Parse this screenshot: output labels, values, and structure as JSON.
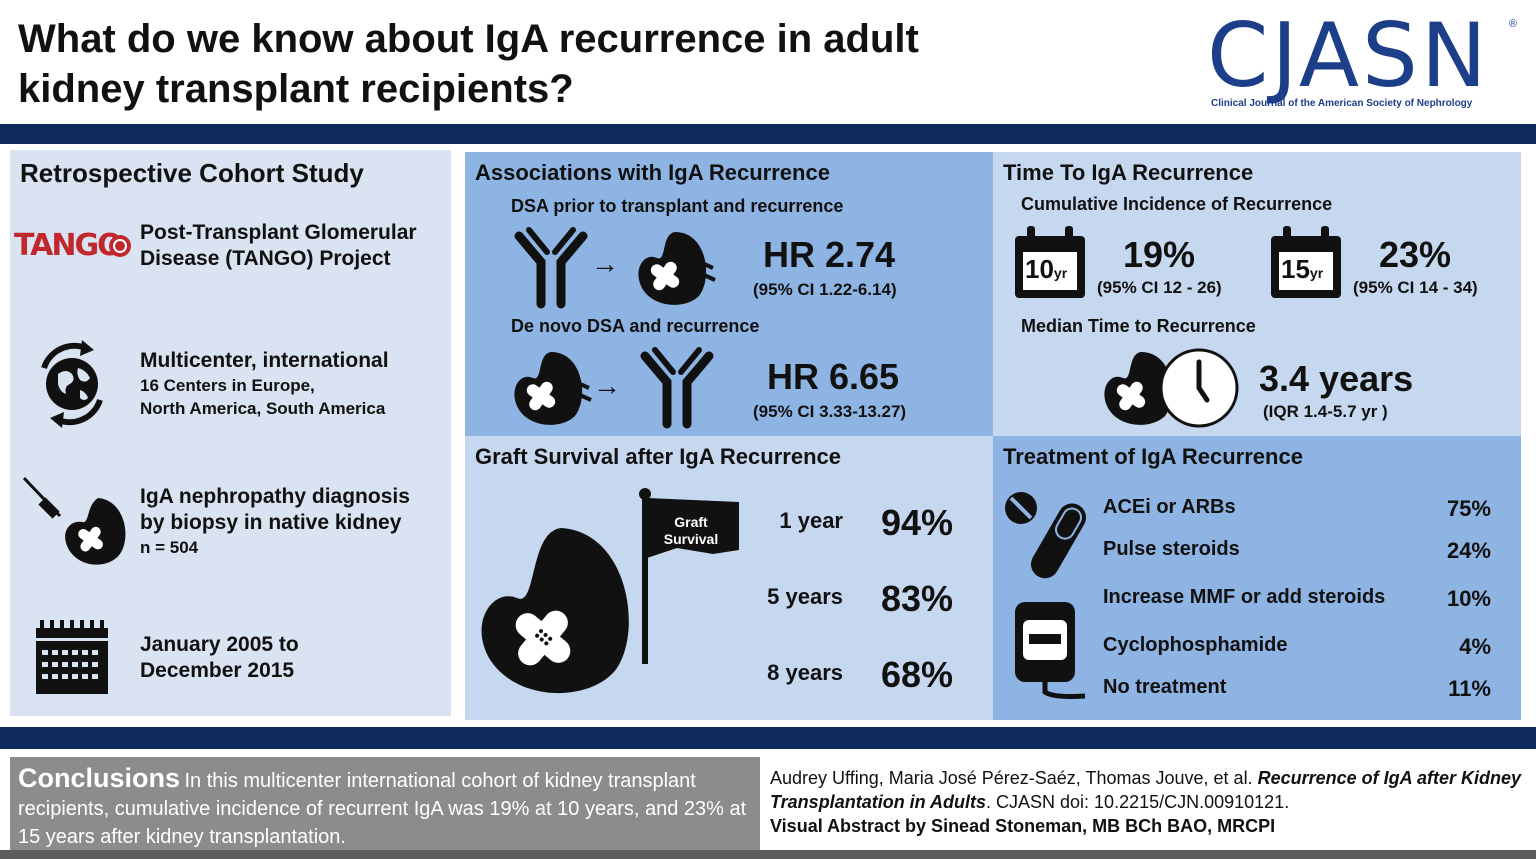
{
  "header": {
    "title_line1": "What do we know about IgA recurrence in adult",
    "title_line2": "kidney transplant recipients?",
    "logo_text": "CJASN",
    "logo_reg": "®",
    "logo_subtitle": "Clinical Journal of the American Society of Nephrology"
  },
  "cohort": {
    "title": "Retrospective Cohort Study",
    "tango_logo": "TANGO",
    "tango_line1": "Post-Transplant Glomerular",
    "tango_line2": "Disease (TANGO) Project",
    "multicenter_title": "Multicenter, international",
    "multicenter_line1": "16 Centers in Europe,",
    "multicenter_line2": "North America, South America",
    "biopsy_line1": "IgA nephropathy diagnosis",
    "biopsy_line2": "by biopsy in native kidney",
    "biopsy_n": "n = 504",
    "dates_line1": "January 2005 to",
    "dates_line2": "December 2015"
  },
  "associations": {
    "title": "Associations with IgA Recurrence",
    "dsa_prior_label": "DSA prior to transplant and recurrence",
    "dsa_prior_hr": "HR 2.74",
    "dsa_prior_ci": "(95% CI 1.22-6.14)",
    "denovo_label": "De novo DSA and recurrence",
    "denovo_hr": "HR 6.65",
    "denovo_ci": "(95% CI 3.33-13.27)",
    "arrow": "→"
  },
  "time": {
    "title": "Time To IgA Recurrence",
    "cumulative_label": "Cumulative Incidence of Recurrence",
    "cal10_num": "10",
    "cal10_unit": "yr",
    "inc10": "19%",
    "inc10_ci": "(95% CI 12 - 26)",
    "cal15_num": "15",
    "cal15_unit": "yr",
    "inc15": "23%",
    "inc15_ci": "(95% CI 14 - 34)",
    "median_label": "Median Time to Recurrence",
    "median_value": "3.4 years",
    "median_iqr": "(IQR 1.4-5.7 yr )"
  },
  "graft": {
    "title": "Graft Survival after IgA Recurrence",
    "flag_line1": "Graft",
    "flag_line2": "Survival",
    "rows": [
      {
        "label": "1 year",
        "value": "94%"
      },
      {
        "label": "5 years",
        "value": "83%"
      },
      {
        "label": "8 years",
        "value": "68%"
      }
    ]
  },
  "treatment": {
    "title": "Treatment of IgA Recurrence",
    "rows": [
      {
        "label": "ACEi or ARBs",
        "value": "75%"
      },
      {
        "label": "Pulse steroids",
        "value": "24%"
      },
      {
        "label": "Increase MMF or add steroids",
        "value": "10%"
      },
      {
        "label": "Cyclophosphamide",
        "value": "4%"
      },
      {
        "label": "No treatment",
        "value": "11%"
      }
    ]
  },
  "footer": {
    "conclusions_head": "Conclusions",
    "conclusions_body": "In this multicenter international cohort of kidney transplant recipients, cumulative incidence of recurrent IgA was 19% at 10 years, and 23% at 15 years after kidney transplantation.",
    "authors": "Audrey Uffing, Maria José Pérez-Saéz, Thomas Jouve, et al.",
    "article_title": "Recurrence of IgA after Kidney Transplantation in Adults",
    "journal_doi": ". CJASN doi: 10.2215/CJN.00910121.",
    "visual_abstract_by": "Visual Abstract by Sinead Stoneman, MB BCh BAO, MRCPI"
  }
}
